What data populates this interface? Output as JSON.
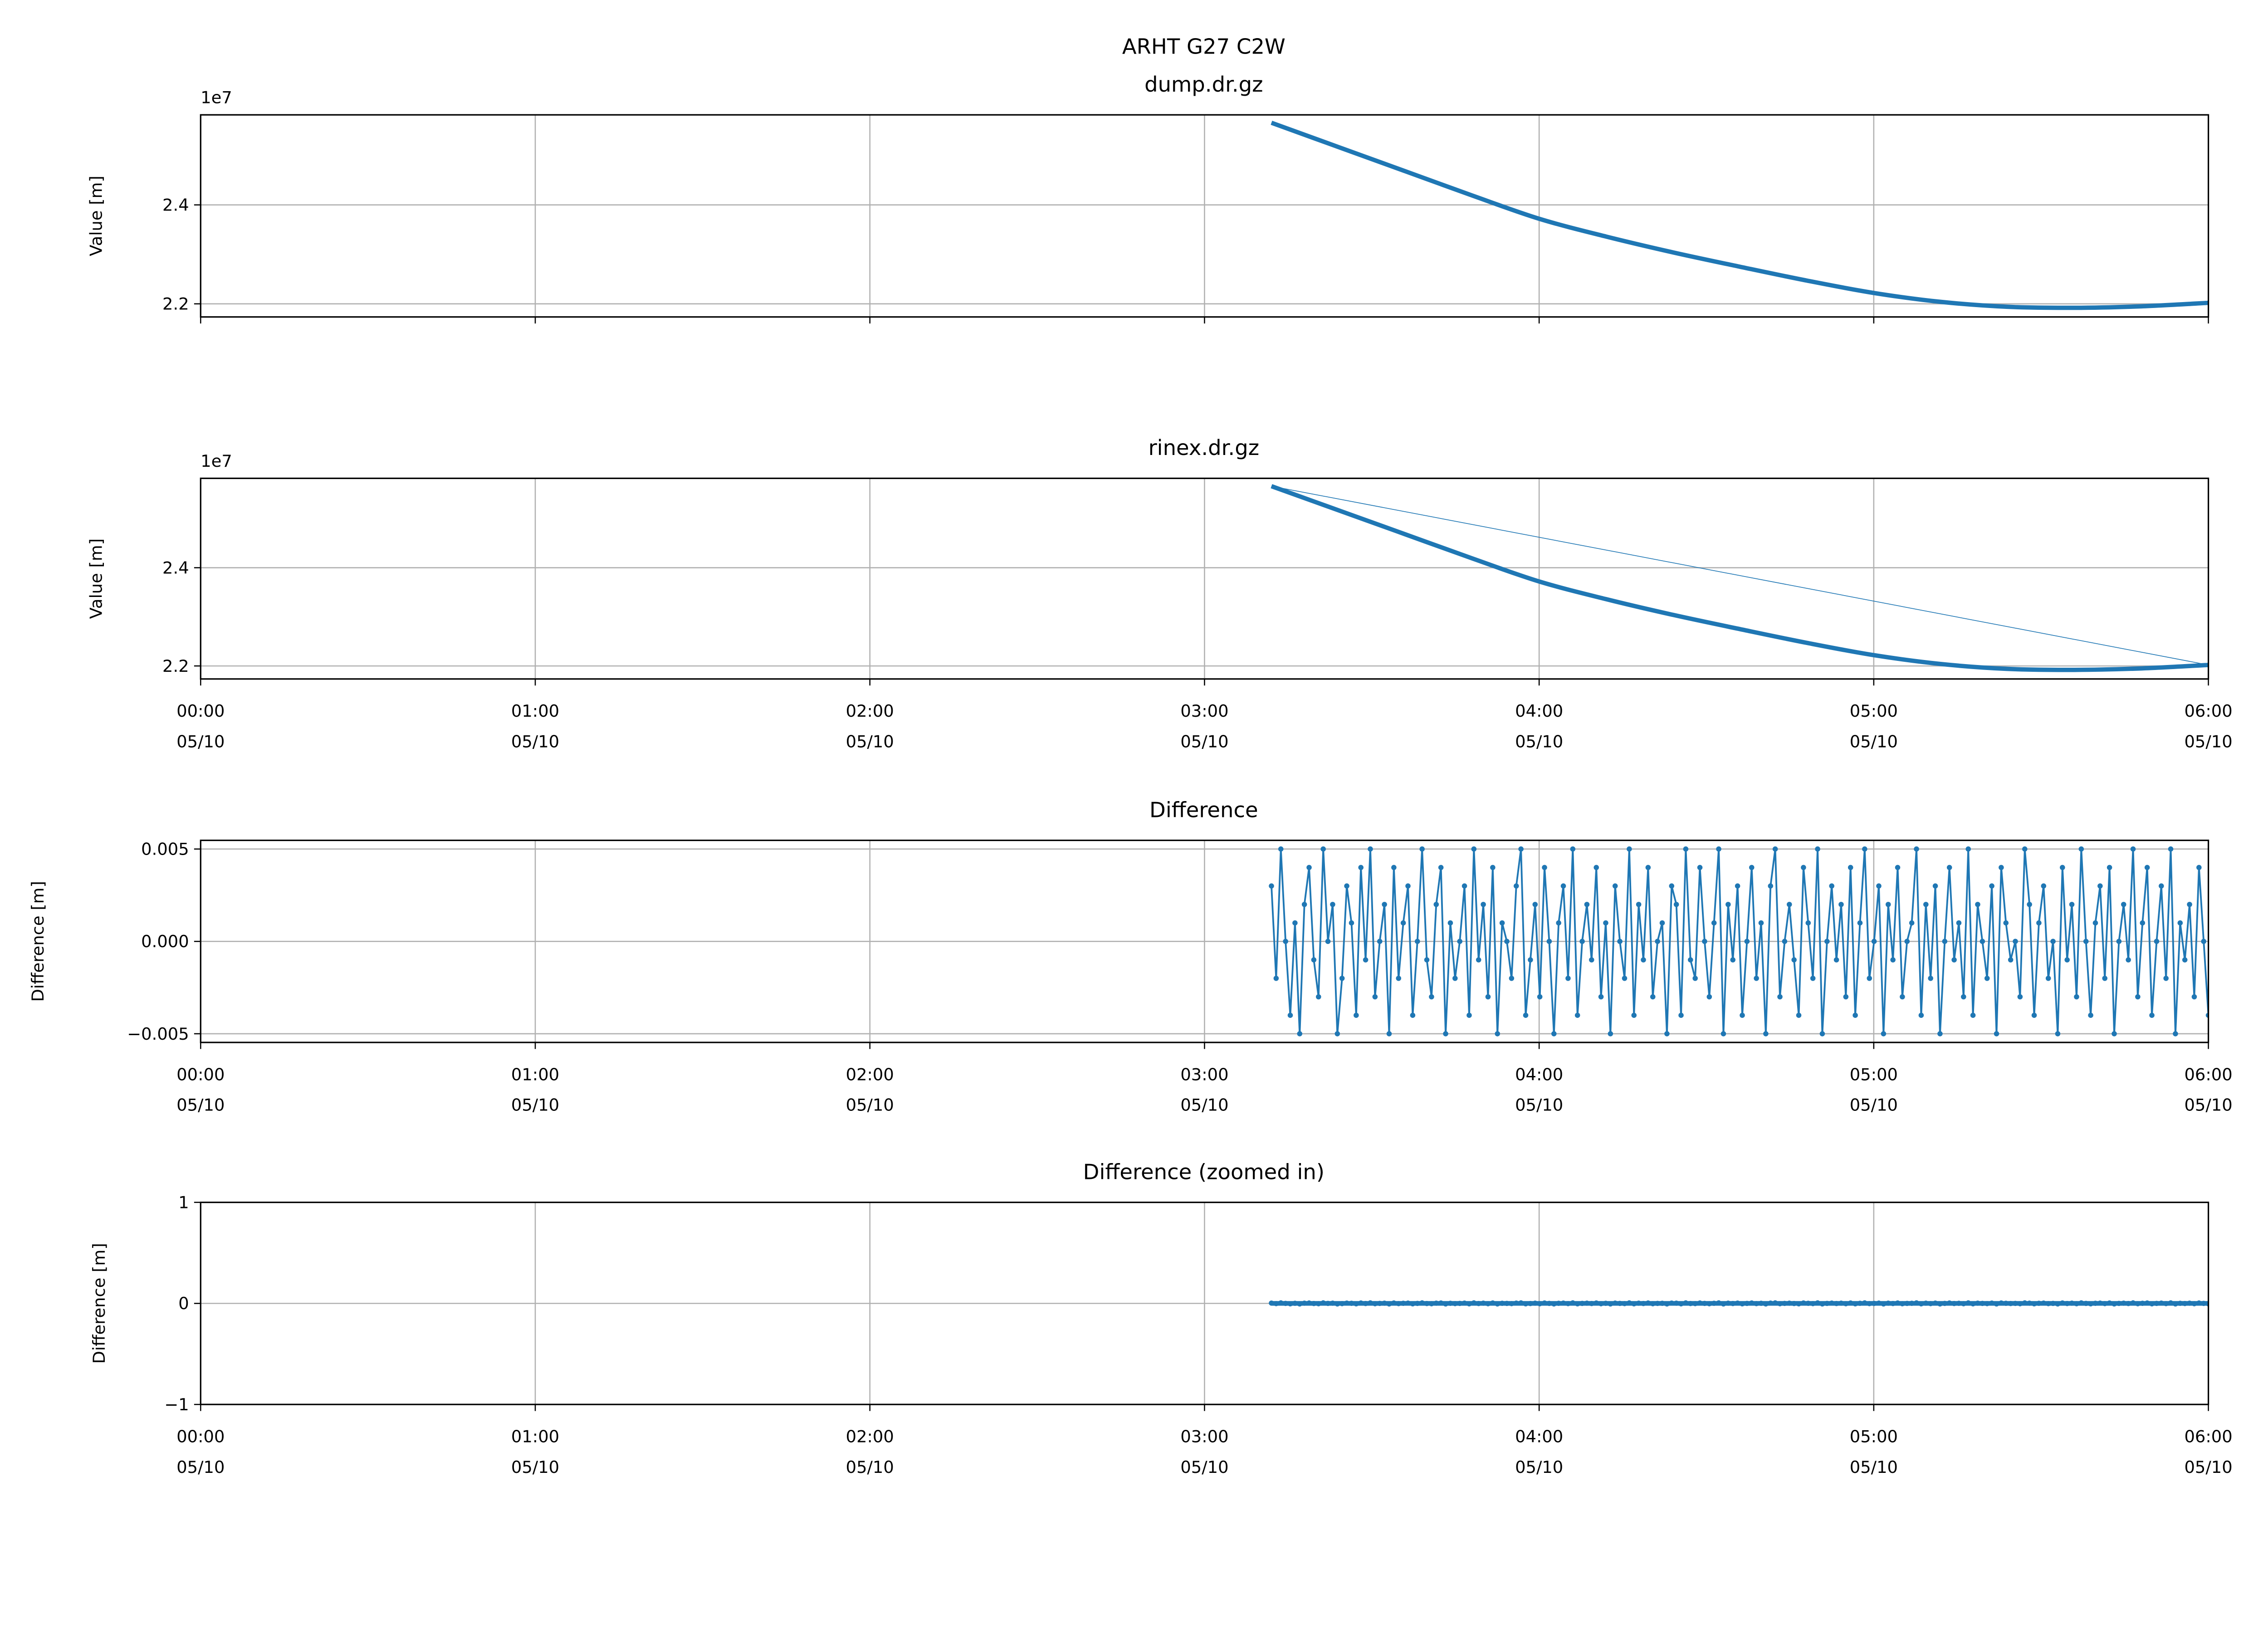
{
  "chart_data": [
    {
      "type": "line",
      "suptitle": "ARHT G27 C2W",
      "title": "dump.dr.gz",
      "ylabel": "Value [m]",
      "offset_label": "1e7",
      "y_scale": 10000000,
      "ylim": [
        2.1735,
        2.582
      ],
      "yticks": [
        2.2,
        2.4
      ],
      "ytick_labels": [
        "2.2",
        "2.4"
      ],
      "xlim_hours": [
        0,
        6
      ],
      "show_xtick_labels": false,
      "grid": true,
      "color": "#1f77b4",
      "series": [
        {
          "name": "value",
          "x_hours": [
            3.2,
            3.4,
            3.6,
            3.8,
            4.0,
            4.2,
            4.4,
            4.6,
            4.8,
            5.0,
            5.2,
            5.4,
            5.6,
            5.8,
            6.0
          ],
          "values": [
            2.566,
            2.517,
            2.468,
            2.419,
            2.372,
            2.336,
            2.304,
            2.275,
            2.247,
            2.222,
            2.204,
            2.194,
            2.192,
            2.195,
            2.202
          ]
        }
      ],
      "wrap_segment": false
    },
    {
      "type": "line",
      "title": "rinex.dr.gz",
      "ylabel": "Value [m]",
      "offset_label": "1e7",
      "y_scale": 10000000,
      "ylim": [
        2.1735,
        2.582
      ],
      "yticks": [
        2.2,
        2.4
      ],
      "ytick_labels": [
        "2.2",
        "2.4"
      ],
      "xlim_hours": [
        0,
        6
      ],
      "show_xtick_labels": true,
      "grid": true,
      "color": "#1f77b4",
      "series": [
        {
          "name": "value",
          "x_hours": [
            3.2,
            3.4,
            3.6,
            3.8,
            4.0,
            4.2,
            4.4,
            4.6,
            4.8,
            5.0,
            5.2,
            5.4,
            5.6,
            5.8,
            6.0
          ],
          "values": [
            2.566,
            2.517,
            2.468,
            2.419,
            2.372,
            2.336,
            2.304,
            2.275,
            2.247,
            2.222,
            2.204,
            2.194,
            2.192,
            2.195,
            2.202
          ]
        }
      ],
      "wrap_segment": true
    },
    {
      "type": "line",
      "title": "Difference",
      "ylabel": "Difference [m]",
      "ylim": [
        -0.00547,
        0.00547
      ],
      "yticks": [
        -0.005,
        0,
        0.005
      ],
      "ytick_labels": [
        "−0.005",
        "0.000",
        "0.005"
      ],
      "xlim_hours": [
        0,
        6
      ],
      "show_xtick_labels": true,
      "grid": true,
      "color": "#1f77b4",
      "markers": true,
      "series_ref": "difference"
    },
    {
      "type": "line",
      "title": "Difference (zoomed in)",
      "ylabel": "Difference [m]",
      "ylim": [
        -1,
        1
      ],
      "yticks": [
        -1,
        0,
        1
      ],
      "ytick_labels": [
        "−1",
        "0",
        "1"
      ],
      "xlim_hours": [
        0,
        6
      ],
      "show_xtick_labels": true,
      "grid": true,
      "color": "#1f77b4",
      "markers": true,
      "series_ref": "difference"
    }
  ],
  "difference": {
    "x_start_hours": 3.2,
    "x_end_hours": 6.0,
    "values_mm": [
      3,
      -2,
      5,
      0,
      -4,
      1,
      -5,
      2,
      4,
      -1,
      -3,
      5,
      0,
      2,
      -5,
      -2,
      3,
      1,
      -4,
      4,
      -1,
      5,
      -3,
      0,
      2,
      -5,
      4,
      -2,
      1,
      3,
      -4,
      0,
      5,
      -1,
      -3,
      2,
      4,
      -5,
      1,
      -2,
      0,
      3,
      -4,
      5,
      -1,
      2,
      -3,
      4,
      -5,
      1,
      0,
      -2,
      3,
      5,
      -4,
      -1,
      2,
      -3,
      4,
      0,
      -5,
      1,
      3,
      -2,
      5,
      -4,
      0,
      2,
      -1,
      4,
      -3,
      1,
      -5,
      3,
      0,
      -2,
      5,
      -4,
      2,
      -1,
      4,
      -3,
      0,
      1,
      -5,
      3,
      2,
      -4,
      5,
      -1,
      -2,
      4,
      0,
      -3,
      1,
      5,
      -5,
      2,
      -1,
      3,
      -4,
      0,
      4,
      -2,
      1,
      -5,
      3,
      5,
      -3,
      0,
      2,
      -1,
      -4,
      4,
      1,
      -2,
      5,
      -5,
      0,
      3,
      -1,
      2,
      -3,
      4,
      -4,
      1,
      5,
      -2,
      0,
      3,
      -5,
      2,
      -1,
      4,
      -3,
      0,
      1,
      5,
      -4,
      2,
      -2,
      3,
      -5,
      0,
      4,
      -1,
      1,
      -3,
      5,
      -4,
      2,
      0,
      -2,
      3,
      -5,
      4,
      1,
      -1,
      0,
      -3,
      5,
      2,
      -4,
      1,
      3,
      -2,
      0,
      -5,
      4,
      -1,
      2,
      -3,
      5,
      0,
      -4,
      1,
      3,
      -2,
      4,
      -5,
      0,
      2,
      -1,
      5,
      -3,
      1,
      4,
      -4,
      0,
      3,
      -2,
      5,
      -5,
      1,
      -1,
      2,
      -3,
      4,
      0,
      -4
    ]
  },
  "xticks": {
    "hours": [
      0,
      1,
      2,
      3,
      4,
      5,
      6
    ],
    "time_labels": [
      "00:00",
      "01:00",
      "02:00",
      "03:00",
      "04:00",
      "05:00",
      "06:00"
    ],
    "date_labels": [
      "05/10",
      "05/10",
      "05/10",
      "05/10",
      "05/10",
      "05/10",
      "05/10"
    ]
  }
}
